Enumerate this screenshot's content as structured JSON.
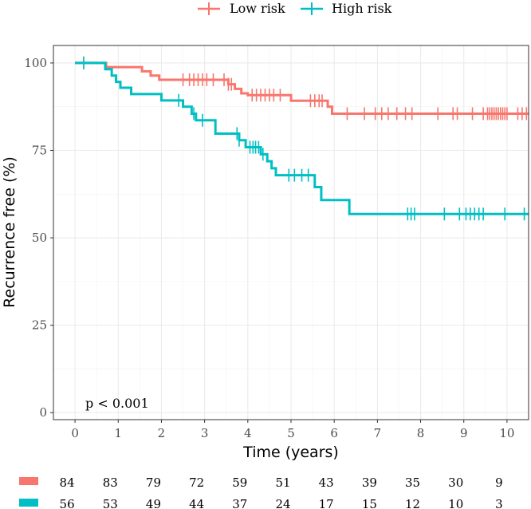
{
  "chart_data": {
    "type": "line",
    "xlabel": "Time (years)",
    "ylabel": "Recurrence free (%)",
    "xlim": [
      -0.5,
      10.5
    ],
    "ylim": [
      -2,
      105
    ],
    "xticks": [
      0,
      1,
      2,
      3,
      4,
      5,
      6,
      7,
      8,
      9,
      10
    ],
    "yticks": [
      0,
      25,
      50,
      75,
      100
    ],
    "xtick_labels": [
      "0",
      "1",
      "2",
      "3",
      "4",
      "5",
      "6",
      "7",
      "8",
      "9",
      "10"
    ],
    "ytick_labels": [
      "0",
      "25",
      "50",
      "75",
      "100"
    ],
    "grid": true,
    "legend_position": "top",
    "annotation": "p < 0.001",
    "series": [
      {
        "name": "Low risk",
        "color": "#F8766D",
        "steps": [
          [
            0,
            100
          ],
          [
            0.72,
            98.8
          ],
          [
            1.55,
            97.6
          ],
          [
            1.75,
            96.4
          ],
          [
            1.95,
            95.2
          ],
          [
            3.55,
            93.9
          ],
          [
            3.7,
            92.6
          ],
          [
            3.85,
            91.3
          ],
          [
            4.0,
            90.8
          ],
          [
            5.0,
            89.2
          ],
          [
            5.85,
            87.5
          ],
          [
            5.95,
            85.5
          ],
          [
            10.5,
            85.5
          ]
        ],
        "censor": [
          [
            0.2,
            100
          ],
          [
            2.5,
            95.2
          ],
          [
            2.65,
            95.2
          ],
          [
            2.75,
            95.2
          ],
          [
            2.85,
            95.2
          ],
          [
            2.95,
            95.2
          ],
          [
            3.05,
            95.2
          ],
          [
            3.2,
            95.2
          ],
          [
            3.45,
            95.2
          ],
          [
            3.55,
            93.9
          ],
          [
            3.62,
            93.9
          ],
          [
            4.1,
            90.8
          ],
          [
            4.2,
            90.8
          ],
          [
            4.3,
            90.8
          ],
          [
            4.4,
            90.8
          ],
          [
            4.5,
            90.8
          ],
          [
            4.6,
            90.8
          ],
          [
            4.75,
            90.8
          ],
          [
            5.45,
            89.2
          ],
          [
            5.55,
            89.2
          ],
          [
            5.65,
            89.2
          ],
          [
            5.72,
            89.2
          ],
          [
            6.3,
            85.5
          ],
          [
            6.7,
            85.5
          ],
          [
            6.95,
            85.5
          ],
          [
            7.1,
            85.5
          ],
          [
            7.25,
            85.5
          ],
          [
            7.45,
            85.5
          ],
          [
            7.65,
            85.5
          ],
          [
            7.8,
            85.5
          ],
          [
            8.4,
            85.5
          ],
          [
            8.75,
            85.5
          ],
          [
            8.85,
            85.5
          ],
          [
            9.2,
            85.5
          ],
          [
            9.45,
            85.5
          ],
          [
            9.55,
            85.5
          ],
          [
            9.6,
            85.5
          ],
          [
            9.65,
            85.5
          ],
          [
            9.7,
            85.5
          ],
          [
            9.75,
            85.5
          ],
          [
            9.8,
            85.5
          ],
          [
            9.85,
            85.5
          ],
          [
            9.9,
            85.5
          ],
          [
            9.95,
            85.5
          ],
          [
            10.0,
            85.5
          ],
          [
            10.25,
            85.5
          ],
          [
            10.35,
            85.5
          ],
          [
            10.45,
            85.5
          ]
        ],
        "at_risk": [
          84,
          83,
          79,
          72,
          59,
          51,
          43,
          39,
          35,
          30,
          9
        ]
      },
      {
        "name": "High risk",
        "color": "#00BFC4",
        "steps": [
          [
            0,
            100
          ],
          [
            0.7,
            98.2
          ],
          [
            0.85,
            96.4
          ],
          [
            0.95,
            94.6
          ],
          [
            1.05,
            92.9
          ],
          [
            1.3,
            91.1
          ],
          [
            2.0,
            89.3
          ],
          [
            2.5,
            87.5
          ],
          [
            2.7,
            85.5
          ],
          [
            2.8,
            83.6
          ],
          [
            3.25,
            79.8
          ],
          [
            3.55,
            79.8
          ],
          [
            3.8,
            77.9
          ],
          [
            3.95,
            75.9
          ],
          [
            4.3,
            73.9
          ],
          [
            4.45,
            71.9
          ],
          [
            4.55,
            69.9
          ],
          [
            4.65,
            67.9
          ],
          [
            5.55,
            64.5
          ],
          [
            5.7,
            60.8
          ],
          [
            6.35,
            56.8
          ],
          [
            10.5,
            56.8
          ]
        ],
        "censor": [
          [
            0.2,
            100
          ],
          [
            2.4,
            89.3
          ],
          [
            2.75,
            85.5
          ],
          [
            2.95,
            83.6
          ],
          [
            3.75,
            79.8
          ],
          [
            3.8,
            77.9
          ],
          [
            4.05,
            75.9
          ],
          [
            4.12,
            75.9
          ],
          [
            4.18,
            75.9
          ],
          [
            4.25,
            75.9
          ],
          [
            4.35,
            73.9
          ],
          [
            4.95,
            67.9
          ],
          [
            5.08,
            67.9
          ],
          [
            5.25,
            67.9
          ],
          [
            5.4,
            67.9
          ],
          [
            7.7,
            56.8
          ],
          [
            7.78,
            56.8
          ],
          [
            7.86,
            56.8
          ],
          [
            8.55,
            56.8
          ],
          [
            8.9,
            56.8
          ],
          [
            9.05,
            56.8
          ],
          [
            9.15,
            56.8
          ],
          [
            9.25,
            56.8
          ],
          [
            9.35,
            56.8
          ],
          [
            9.45,
            56.8
          ],
          [
            9.95,
            56.8
          ],
          [
            10.4,
            56.8
          ]
        ],
        "at_risk": [
          56,
          53,
          49,
          44,
          37,
          24,
          17,
          15,
          12,
          10,
          3
        ]
      }
    ]
  }
}
